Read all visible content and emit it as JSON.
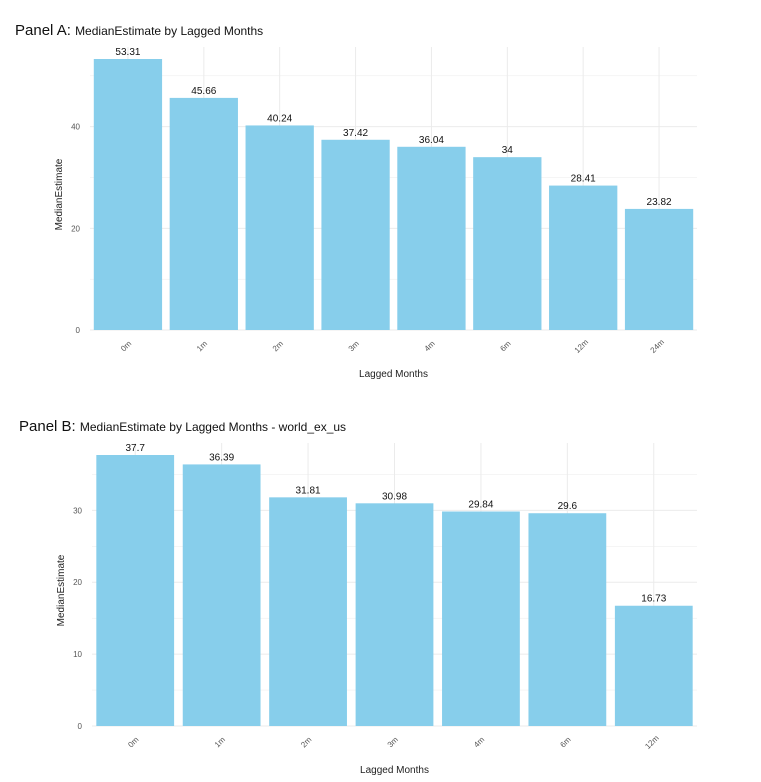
{
  "panels": [
    {
      "label": "Panel A:",
      "title": "MedianEstimate by Lagged Months"
    },
    {
      "label": "Panel B:",
      "title": "MedianEstimate by Lagged Months - world_ex_us"
    }
  ],
  "colors": {
    "bar": "#87CEEB",
    "grid": "#ebebeb"
  },
  "chart_data": [
    {
      "type": "bar",
      "title": "MedianEstimate by Lagged Months",
      "xlabel": "Lagged Months",
      "ylabel": "MedianEstimate",
      "categories": [
        "0m",
        "1m",
        "2m",
        "3m",
        "4m",
        "6m",
        "12m",
        "24m"
      ],
      "values": [
        53.31,
        45.66,
        40.24,
        37.42,
        36.04,
        34,
        28.41,
        23.82
      ],
      "value_labels": [
        "53.31",
        "45.66",
        "40.24",
        "37.42",
        "36.04",
        "34",
        "28.41",
        "23.82"
      ],
      "yticks": [
        0,
        20,
        40
      ],
      "ylim": [
        0,
        53.31
      ],
      "grid": true,
      "legend": "none"
    },
    {
      "type": "bar",
      "title": "MedianEstimate by Lagged Months - world_ex_us",
      "xlabel": "Lagged Months",
      "ylabel": "MedianEstimate",
      "categories": [
        "0m",
        "1m",
        "2m",
        "3m",
        "4m",
        "6m",
        "12m"
      ],
      "values": [
        37.7,
        36.39,
        31.81,
        30.98,
        29.84,
        29.6,
        16.73
      ],
      "value_labels": [
        "37.7",
        "36.39",
        "31.81",
        "30.98",
        "29.84",
        "29.6",
        "16.73"
      ],
      "yticks": [
        0,
        10,
        20,
        30
      ],
      "ylim": [
        0,
        37.7
      ],
      "grid": true,
      "legend": "none"
    }
  ]
}
